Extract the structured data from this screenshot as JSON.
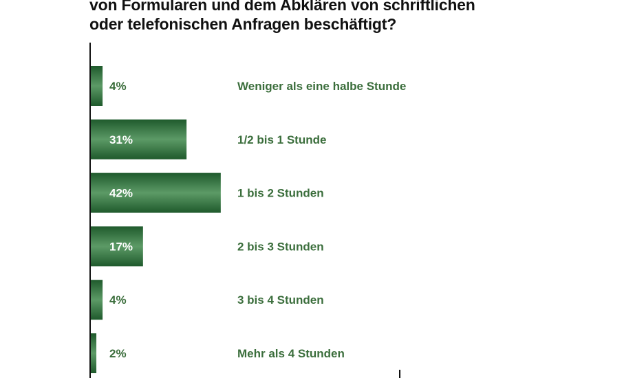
{
  "title_lines": [
    "von Formularen und dem Abklären von schriftlichen",
    "oder telefonischen Anfragen beschäftigt?"
  ],
  "colors": {
    "bar_dark": "#1f5a2c",
    "bar_light": "#5c9a66",
    "label_in_bar": "#ffffff",
    "label_outside": "#3b6e3c",
    "category_text": "#3b6e3c",
    "axis": "#111111"
  },
  "chart_data": {
    "type": "bar",
    "orientation": "horizontal",
    "categories": [
      "Weniger als eine halbe Stunde",
      "1/2 bis 1 Stunde",
      "1 bis 2 Stunden",
      "2 bis 3 Stunden",
      "3 bis 4 Stunden",
      "Mehr als 4 Stunden"
    ],
    "values": [
      4,
      31,
      42,
      17,
      4,
      2
    ],
    "value_labels": [
      "4%",
      "31%",
      "42%",
      "17%",
      "4%",
      "2%"
    ],
    "unit": "%",
    "xlim": [
      0,
      100
    ],
    "grid": false,
    "legend": "none"
  }
}
